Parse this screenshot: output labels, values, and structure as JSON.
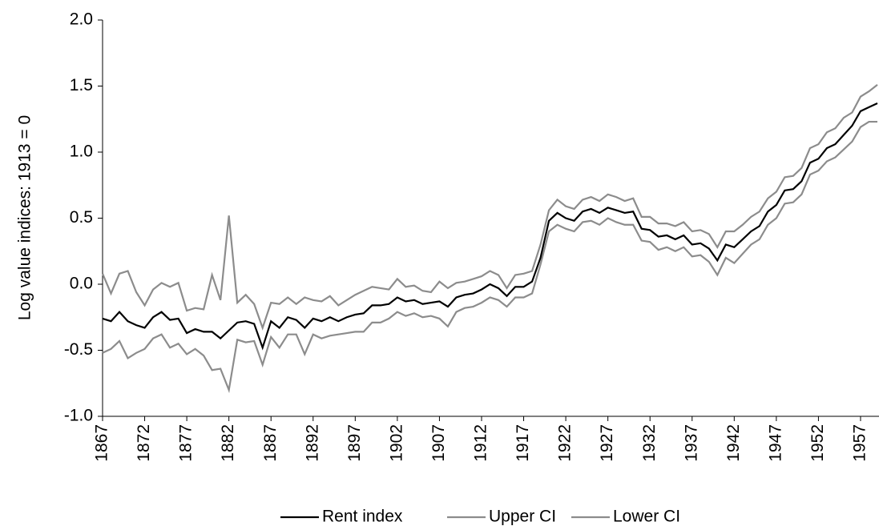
{
  "chart_data": {
    "type": "line",
    "y_label": "Log value indices: 1913 = 0",
    "x": [
      1867,
      1868,
      1869,
      1870,
      1871,
      1872,
      1873,
      1874,
      1875,
      1876,
      1877,
      1878,
      1879,
      1880,
      1881,
      1882,
      1883,
      1884,
      1885,
      1886,
      1887,
      1888,
      1889,
      1890,
      1891,
      1892,
      1893,
      1894,
      1895,
      1896,
      1897,
      1898,
      1899,
      1900,
      1901,
      1902,
      1903,
      1904,
      1905,
      1906,
      1907,
      1908,
      1909,
      1910,
      1911,
      1912,
      1913,
      1914,
      1915,
      1916,
      1917,
      1918,
      1919,
      1920,
      1921,
      1922,
      1923,
      1924,
      1925,
      1926,
      1927,
      1928,
      1929,
      1930,
      1931,
      1932,
      1933,
      1934,
      1935,
      1936,
      1937,
      1938,
      1939,
      1940,
      1941,
      1942,
      1943,
      1944,
      1945,
      1946,
      1947,
      1948,
      1949,
      1950,
      1951,
      1952,
      1953,
      1954,
      1955,
      1956,
      1957,
      1958,
      1959
    ],
    "series": [
      {
        "name": "Rent index",
        "color": "#000000",
        "values": [
          -0.26,
          -0.28,
          -0.21,
          -0.28,
          -0.31,
          -0.33,
          -0.25,
          -0.21,
          -0.27,
          -0.26,
          -0.37,
          -0.34,
          -0.36,
          -0.36,
          -0.41,
          -0.35,
          -0.29,
          -0.28,
          -0.3,
          -0.48,
          -0.28,
          -0.33,
          -0.25,
          -0.27,
          -0.33,
          -0.26,
          -0.28,
          -0.25,
          -0.28,
          -0.25,
          -0.23,
          -0.22,
          -0.16,
          -0.16,
          -0.15,
          -0.1,
          -0.13,
          -0.12,
          -0.15,
          -0.14,
          -0.13,
          -0.17,
          -0.1,
          -0.08,
          -0.07,
          -0.04,
          0.0,
          -0.03,
          -0.09,
          -0.02,
          -0.02,
          0.02,
          0.2,
          0.48,
          0.54,
          0.5,
          0.48,
          0.55,
          0.57,
          0.54,
          0.58,
          0.56,
          0.54,
          0.55,
          0.42,
          0.41,
          0.36,
          0.37,
          0.34,
          0.37,
          0.3,
          0.31,
          0.27,
          0.18,
          0.3,
          0.28,
          0.34,
          0.4,
          0.44,
          0.55,
          0.6,
          0.71,
          0.72,
          0.78,
          0.92,
          0.95,
          1.03,
          1.06,
          1.13,
          1.2,
          1.31,
          1.34,
          1.37
        ]
      },
      {
        "name": "Upper CI",
        "color": "#8c8c8c",
        "values": [
          0.08,
          -0.07,
          0.08,
          0.1,
          -0.06,
          -0.16,
          -0.04,
          0.01,
          -0.02,
          0.01,
          -0.2,
          -0.18,
          -0.19,
          0.07,
          -0.12,
          0.52,
          -0.14,
          -0.08,
          -0.15,
          -0.33,
          -0.14,
          -0.15,
          -0.1,
          -0.15,
          -0.1,
          -0.12,
          -0.13,
          -0.09,
          -0.16,
          -0.12,
          -0.08,
          -0.05,
          -0.02,
          -0.03,
          -0.04,
          0.04,
          -0.02,
          -0.01,
          -0.05,
          -0.06,
          0.02,
          -0.03,
          0.01,
          0.02,
          0.04,
          0.06,
          0.1,
          0.07,
          -0.03,
          0.07,
          0.08,
          0.1,
          0.3,
          0.56,
          0.64,
          0.59,
          0.57,
          0.64,
          0.66,
          0.63,
          0.68,
          0.66,
          0.63,
          0.65,
          0.51,
          0.51,
          0.46,
          0.46,
          0.44,
          0.47,
          0.4,
          0.41,
          0.38,
          0.28,
          0.4,
          0.4,
          0.45,
          0.51,
          0.55,
          0.65,
          0.7,
          0.81,
          0.82,
          0.88,
          1.03,
          1.06,
          1.15,
          1.18,
          1.26,
          1.3,
          1.42,
          1.46,
          1.51
        ]
      },
      {
        "name": "Lower CI",
        "color": "#8c8c8c",
        "values": [
          -0.52,
          -0.49,
          -0.43,
          -0.56,
          -0.52,
          -0.49,
          -0.41,
          -0.38,
          -0.48,
          -0.45,
          -0.53,
          -0.49,
          -0.54,
          -0.65,
          -0.64,
          -0.8,
          -0.42,
          -0.44,
          -0.43,
          -0.61,
          -0.4,
          -0.48,
          -0.38,
          -0.38,
          -0.53,
          -0.38,
          -0.41,
          -0.39,
          -0.38,
          -0.37,
          -0.36,
          -0.36,
          -0.29,
          -0.29,
          -0.26,
          -0.21,
          -0.24,
          -0.22,
          -0.25,
          -0.24,
          -0.26,
          -0.32,
          -0.21,
          -0.18,
          -0.17,
          -0.14,
          -0.1,
          -0.12,
          -0.17,
          -0.1,
          -0.1,
          -0.07,
          0.15,
          0.4,
          0.45,
          0.42,
          0.4,
          0.47,
          0.48,
          0.45,
          0.5,
          0.47,
          0.45,
          0.45,
          0.33,
          0.32,
          0.26,
          0.28,
          0.25,
          0.28,
          0.21,
          0.22,
          0.17,
          0.07,
          0.2,
          0.16,
          0.23,
          0.3,
          0.34,
          0.45,
          0.5,
          0.61,
          0.62,
          0.68,
          0.83,
          0.86,
          0.93,
          0.96,
          1.02,
          1.08,
          1.19,
          1.23,
          1.23
        ]
      }
    ],
    "xlim": [
      1867,
      1959
    ],
    "xticks": [
      1867,
      1872,
      1877,
      1882,
      1887,
      1892,
      1897,
      1902,
      1907,
      1912,
      1917,
      1922,
      1927,
      1932,
      1937,
      1942,
      1947,
      1952,
      1957
    ],
    "ylim": [
      -1,
      2
    ],
    "yticks": [
      {
        "value": -1,
        "label": "-1.0"
      },
      {
        "value": -0.5,
        "label": "-0.5"
      },
      {
        "value": 0,
        "label": "0.0"
      },
      {
        "value": 0.5,
        "label": "0.5"
      },
      {
        "value": 1,
        "label": "1.0"
      },
      {
        "value": 1.5,
        "label": "1.5"
      },
      {
        "value": 2,
        "label": "2.0"
      }
    ],
    "grid": false,
    "legend": "bottom"
  }
}
